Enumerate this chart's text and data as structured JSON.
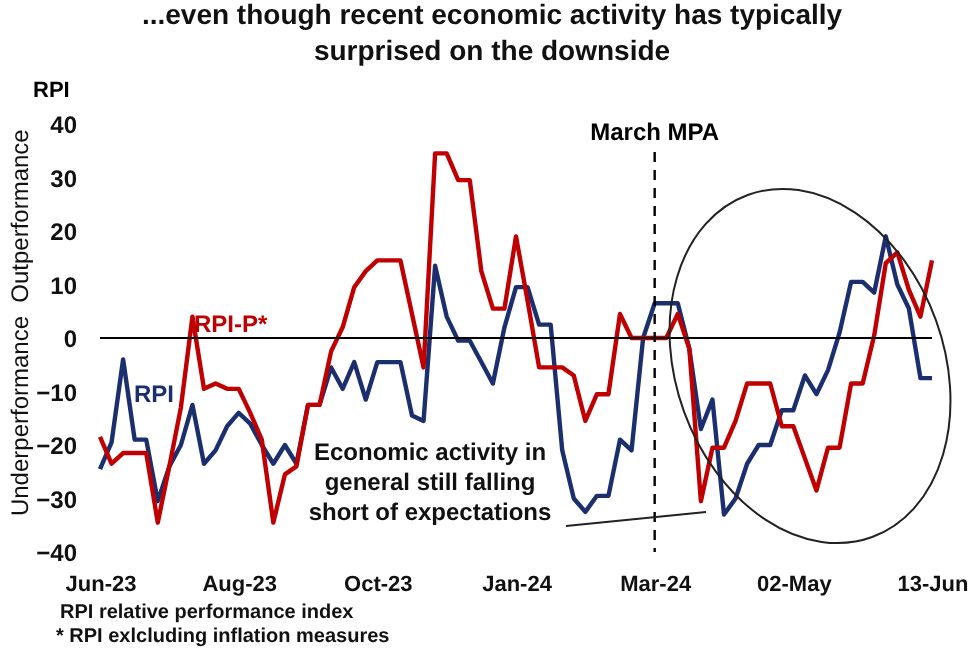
{
  "chart_data": {
    "type": "line",
    "title": "...even though recent economic activity has typically surprised on the downside",
    "ylabel": "RPI",
    "categories": [
      "Jun-23",
      null,
      null,
      null,
      null,
      null,
      null,
      null,
      null,
      null,
      null,
      null,
      "Aug-23",
      null,
      null,
      null,
      null,
      null,
      null,
      null,
      null,
      null,
      null,
      null,
      "Oct-23",
      null,
      null,
      null,
      null,
      null,
      null,
      null,
      null,
      null,
      null,
      null,
      "Jan-24",
      null,
      null,
      null,
      null,
      null,
      null,
      null,
      null,
      null,
      null,
      null,
      "Mar-24",
      null,
      null,
      null,
      null,
      null,
      null,
      null,
      null,
      null,
      null,
      null,
      "02-May",
      null,
      null,
      null,
      null,
      null,
      null,
      null,
      null,
      null,
      null,
      null,
      "13-Jun"
    ],
    "series": [
      {
        "name": "RPI",
        "color": "#1b2f6e",
        "values": [
          -24.5,
          -19.5,
          -4,
          -19,
          -19,
          -30.5,
          -24,
          -20,
          -12.5,
          -23.5,
          -21,
          -16.5,
          -14,
          -16,
          -20,
          -23.5,
          -20,
          -23.5,
          -12.5,
          -12.5,
          -5.5,
          -9.5,
          -4.5,
          -11.5,
          -4.5,
          -4.5,
          -4.5,
          -14.5,
          -15.5,
          13.5,
          4,
          -0.5,
          -0.5,
          -4.5,
          -8.5,
          2,
          9.5,
          9.5,
          2.5,
          2.5,
          -21,
          -30,
          -32.5,
          -29.5,
          -29.5,
          -19,
          -21,
          0,
          6.5,
          6.5,
          6.5,
          -2,
          -17,
          -11.5,
          -33,
          -30,
          -23.5,
          -20,
          -20,
          -13.5,
          -13.5,
          -7,
          -10.5,
          -6,
          1,
          10.5,
          10.5,
          8.5,
          19,
          10,
          5.5,
          -7.5,
          -7.5
        ]
      },
      {
        "name": "RPI-P*",
        "color": "#c00000",
        "values": [
          -18.5,
          -23.5,
          -21.5,
          -21.5,
          -21.5,
          -34.5,
          -24,
          -13,
          4,
          -9.5,
          -8.5,
          -9.5,
          -9.5,
          -14,
          -19,
          -34.5,
          -25.5,
          -24,
          -12.5,
          -12.5,
          -2.5,
          2,
          9.5,
          12.5,
          14.5,
          14.5,
          14.5,
          4.5,
          -5.5,
          34.5,
          34.5,
          29.5,
          29.5,
          12.5,
          5.5,
          5.5,
          19,
          7,
          -5.5,
          -5.5,
          -5.5,
          -7,
          -15.5,
          -10.5,
          -10.5,
          4.5,
          0,
          0,
          0,
          0,
          4.5,
          -2,
          -30.5,
          -20.5,
          -20.5,
          -15.5,
          -8.5,
          -8.5,
          -8.5,
          -16.5,
          -16.5,
          -22.5,
          -28.5,
          -20.5,
          -20.5,
          -8.5,
          -8.5,
          0.5,
          14,
          16,
          9,
          4,
          14.5
        ]
      }
    ],
    "ylim": [
      -40,
      40
    ],
    "yticks": [
      -40,
      -30,
      -20,
      -10,
      0,
      10,
      20,
      30,
      40
    ],
    "grid": false,
    "legend": false,
    "line_style": "solid",
    "marker": "none",
    "ref_lines": [
      {
        "axis": "y",
        "value": 0,
        "color": "#000000",
        "line_style": "solid"
      },
      {
        "axis": "x",
        "value": "Mar-24",
        "label": "March MPA",
        "color": "#000000",
        "line_style": "dashed"
      }
    ],
    "annotations": [
      "Outperformance",
      "Underperformance",
      "Economic activity in general still falling short of expectations",
      "RPI relative performance index",
      "* RPI exlcluding inflation measures"
    ]
  }
}
